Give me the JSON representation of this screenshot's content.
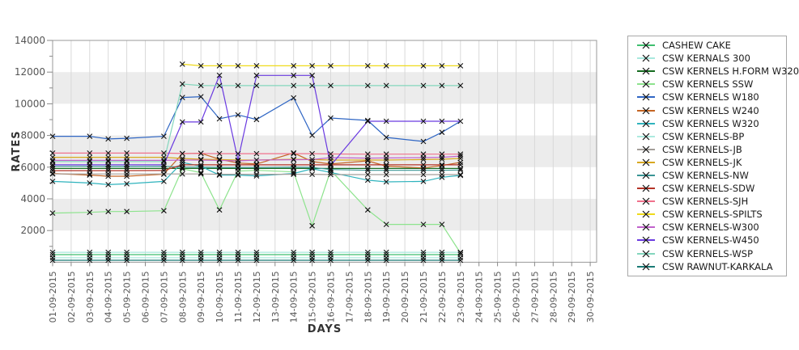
{
  "page": {
    "background": "#ffffff"
  },
  "chart_data": {
    "type": "line",
    "title": "",
    "xlabel": "DAYS",
    "ylabel": "RATES",
    "ylim": [
      0,
      14000
    ],
    "y_major_ticks": [
      2000,
      4000,
      6000,
      8000,
      10000,
      12000,
      14000
    ],
    "y_minor_ticks": [
      1000,
      3000,
      5000,
      7000,
      9000,
      11000,
      13000
    ],
    "x_tick_labels": [
      "01-09-2015",
      "02-09-2015",
      "03-09-2015",
      "04-09-2015",
      "05-09-2015",
      "06-09-2015",
      "07-09-2015",
      "08-09-2015",
      "09-09-2015",
      "10-09-2015",
      "11-09-2015",
      "12-09-2015",
      "13-09-2015",
      "14-09-2015",
      "15-09-2015",
      "16-09-2015",
      "17-09-2015",
      "18-09-2015",
      "19-09-2015",
      "20-09-2015",
      "21-09-2015",
      "22-09-2015",
      "23-09-2015",
      "24-09-2015",
      "25-09-2015",
      "26-09-2015",
      "27-09-2015",
      "28-09-2015",
      "29-09-2015",
      "30-09-2015"
    ],
    "days_with_data": [
      1,
      3,
      4,
      5,
      7,
      8,
      9,
      10,
      11,
      12,
      14,
      15,
      16,
      18,
      19,
      21,
      22,
      23
    ],
    "grid": {
      "vertical": true,
      "line_color": "#d9d9d9",
      "band_fill": "#ececec",
      "bands": [
        [
          2000,
          4000
        ],
        [
          6000,
          8000
        ],
        [
          10000,
          12000
        ]
      ]
    },
    "axis": {
      "line_color": "#999999",
      "tick_color": "#888888",
      "tick_label_color": "#555555"
    },
    "marker": {
      "shape": "x",
      "color": "#111111",
      "size": 3
    },
    "legend_position": "right",
    "series": [
      {
        "name": "CASHEW CAKE",
        "color": "#3fbf6f",
        "values": [
          480,
          480,
          480,
          480,
          480,
          480,
          480,
          480,
          480,
          480,
          480,
          480,
          480,
          480,
          480,
          480,
          480,
          480
        ]
      },
      {
        "name": "CSW KERNALS 300",
        "color": "#a9e9de",
        "values": [
          630,
          630,
          630,
          630,
          630,
          630,
          630,
          630,
          630,
          630,
          630,
          630,
          630,
          630,
          630,
          630,
          630,
          630
        ]
      },
      {
        "name": "CSW KERNELS H.FORM W320",
        "color": "#156b1f",
        "values": [
          5920,
          5920,
          5920,
          5920,
          5920,
          5920,
          5920,
          5920,
          5920,
          5920,
          5920,
          5920,
          5920,
          5920,
          5920,
          5920,
          5920,
          5920
        ]
      },
      {
        "name": "CSW KERNELS SSW",
        "color": "#8de38d",
        "values": [
          3100,
          3150,
          3200,
          3200,
          3250,
          5900,
          5650,
          3300,
          5750,
          5800,
          5700,
          2300,
          5800,
          3300,
          2390,
          2390,
          2390,
          580
        ]
      },
      {
        "name": "CSW KERNELS W180",
        "color": "#2f66c4",
        "values": [
          7950,
          7950,
          7780,
          7820,
          7950,
          10400,
          10450,
          9050,
          9300,
          9010,
          10370,
          8010,
          9100,
          8950,
          7880,
          7620,
          8200,
          8900
        ]
      },
      {
        "name": "CSW KERNELS W240",
        "color": "#c46524",
        "values": [
          5600,
          5500,
          5430,
          5430,
          5550,
          6850,
          6880,
          6500,
          6260,
          6200,
          6900,
          6350,
          6200,
          6400,
          6060,
          5950,
          6100,
          6300
        ]
      },
      {
        "name": "CSW KERNELS W320",
        "color": "#2fb3bd",
        "values": [
          5100,
          5000,
          4900,
          4950,
          5100,
          6300,
          6050,
          5500,
          5500,
          5450,
          5600,
          5900,
          5670,
          5180,
          5070,
          5100,
          5360,
          5480
        ]
      },
      {
        "name": "CSW KERNELS-BP",
        "color": "#aceadf",
        "values": [
          280,
          280,
          280,
          280,
          280,
          280,
          280,
          280,
          280,
          280,
          280,
          280,
          280,
          280,
          280,
          280,
          280,
          280
        ]
      },
      {
        "name": "CSW KERNELS-JB",
        "color": "#a39d99",
        "values": [
          5570,
          5570,
          5570,
          5570,
          5570,
          5570,
          5570,
          5550,
          5550,
          5550,
          5550,
          5550,
          5530,
          5530,
          5530,
          5530,
          5530,
          5530
        ]
      },
      {
        "name": "CSW KERNELS-JK",
        "color": "#d8a821",
        "values": [
          6620,
          6620,
          6620,
          6620,
          6620,
          6550,
          6500,
          6480,
          6450,
          6450,
          6500,
          6480,
          6450,
          6450,
          6450,
          6480,
          6500,
          6550
        ]
      },
      {
        "name": "CSW KERNELS-NW",
        "color": "#399494",
        "values": [
          6050,
          6050,
          6040,
          6040,
          6050,
          6000,
          6000,
          5980,
          5980,
          5980,
          6000,
          5980,
          5850,
          5800,
          5800,
          5800,
          5800,
          5820
        ]
      },
      {
        "name": "CSW KERNELS-SDW",
        "color": "#b53327",
        "values": [
          5780,
          5780,
          5780,
          5780,
          5790,
          6150,
          6150,
          6150,
          6150,
          6150,
          6150,
          6150,
          6150,
          6150,
          6150,
          6150,
          6150,
          6150
        ]
      },
      {
        "name": "CSW KERNELS-SJH",
        "color": "#f0718c",
        "values": [
          6890,
          6890,
          6890,
          6890,
          6890,
          6860,
          6860,
          6850,
          6850,
          6850,
          6850,
          6850,
          6830,
          6820,
          6820,
          6820,
          6820,
          6820
        ]
      },
      {
        "name": "CSW KERNELS-SPILTS",
        "color": "#efda1b",
        "values": [
          null,
          null,
          null,
          null,
          null,
          12500,
          12400,
          12400,
          12400,
          12400,
          12400,
          12400,
          12400,
          12400,
          12400,
          12400,
          12400,
          12400
        ]
      },
      {
        "name": "CSW KERNELS-W300",
        "color": "#c162cc",
        "values": [
          6430,
          6430,
          6430,
          6430,
          6430,
          6450,
          6450,
          6430,
          6400,
          6450,
          6470,
          6480,
          6600,
          6570,
          6580,
          6600,
          6620,
          6700
        ]
      },
      {
        "name": "CSW KERNELS-W450",
        "color": "#6a3ae0",
        "values": [
          6150,
          6150,
          6150,
          6150,
          6150,
          8850,
          8850,
          11800,
          6450,
          11790,
          11790,
          11790,
          6100,
          8900,
          8900,
          8900,
          8900,
          8900
        ]
      },
      {
        "name": "CSW KERNELS-WSP",
        "color": "#83d6bd",
        "values": [
          6350,
          6350,
          6350,
          6350,
          6350,
          11250,
          11150,
          11150,
          11150,
          11150,
          11150,
          11150,
          11150,
          11150,
          11150,
          11150,
          11150,
          11150
        ]
      },
      {
        "name": "CSW RAWNUT-KARKALA",
        "color": "#1a7a76",
        "values": [
          120,
          120,
          120,
          120,
          120,
          120,
          120,
          120,
          120,
          120,
          120,
          120,
          120,
          120,
          120,
          120,
          120,
          120
        ]
      }
    ]
  },
  "legend": {
    "border_color": "#a8a8a8",
    "background": "#ffffff"
  }
}
